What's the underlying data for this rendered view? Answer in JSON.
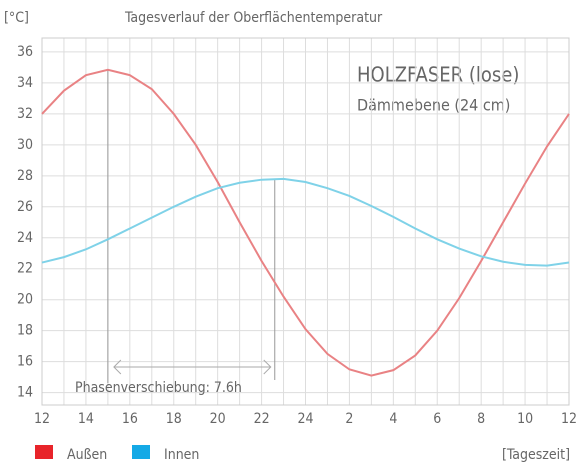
{
  "chart_data": {
    "type": "line",
    "title": "Tagesverlauf der Oberflächentemperatur",
    "y_label": "[°C]",
    "x_label": "[Tageszeit]",
    "annotations": [
      "HOLZFASER (lose)",
      "Dämmebene (24 cm)"
    ],
    "phase_shift": {
      "label": "Phasenverschiebung: 7.6h",
      "start": 15,
      "end": 22.6
    },
    "x": [
      12,
      13,
      14,
      15,
      16,
      17,
      18,
      19,
      20,
      21,
      22,
      23,
      24,
      25,
      26,
      27,
      28,
      29,
      30,
      31,
      32,
      33,
      34,
      35,
      36
    ],
    "series": [
      {
        "name": "Außen",
        "color": "#e98284",
        "legend_color": "#e8242a",
        "values": [
          32,
          33.5,
          34.5,
          34.85,
          34.5,
          33.6,
          32,
          30,
          27.6,
          25,
          22.5,
          20.2,
          18.1,
          16.5,
          15.5,
          15.1,
          15.45,
          16.4,
          18,
          20.1,
          22.5,
          25,
          27.5,
          29.9,
          32
        ]
      },
      {
        "name": "Innen",
        "color": "#7fd2e8",
        "legend_color": "#14a9e6",
        "values": [
          22.4,
          22.75,
          23.25,
          23.9,
          24.6,
          25.3,
          26,
          26.65,
          27.2,
          27.55,
          27.75,
          27.8,
          27.6,
          27.2,
          26.7,
          26.05,
          25.35,
          24.6,
          23.9,
          23.3,
          22.8,
          22.45,
          22.25,
          22.2,
          22.4
        ]
      }
    ],
    "xlim": [
      12,
      36
    ],
    "xticks": [
      12,
      14,
      16,
      18,
      20,
      22,
      24,
      {
        "value": 26,
        "label": "2"
      },
      {
        "value": 28,
        "label": "4"
      },
      {
        "value": 30,
        "label": "6"
      },
      {
        "value": 32,
        "label": "8"
      },
      {
        "value": 34,
        "label": "10"
      },
      {
        "value": 36,
        "label": "12"
      }
    ],
    "ylim": [
      13.2,
      36.9
    ],
    "yticks": [
      14,
      16,
      18,
      20,
      22,
      24,
      26,
      28,
      30,
      32,
      34,
      36
    ],
    "grid": true
  }
}
